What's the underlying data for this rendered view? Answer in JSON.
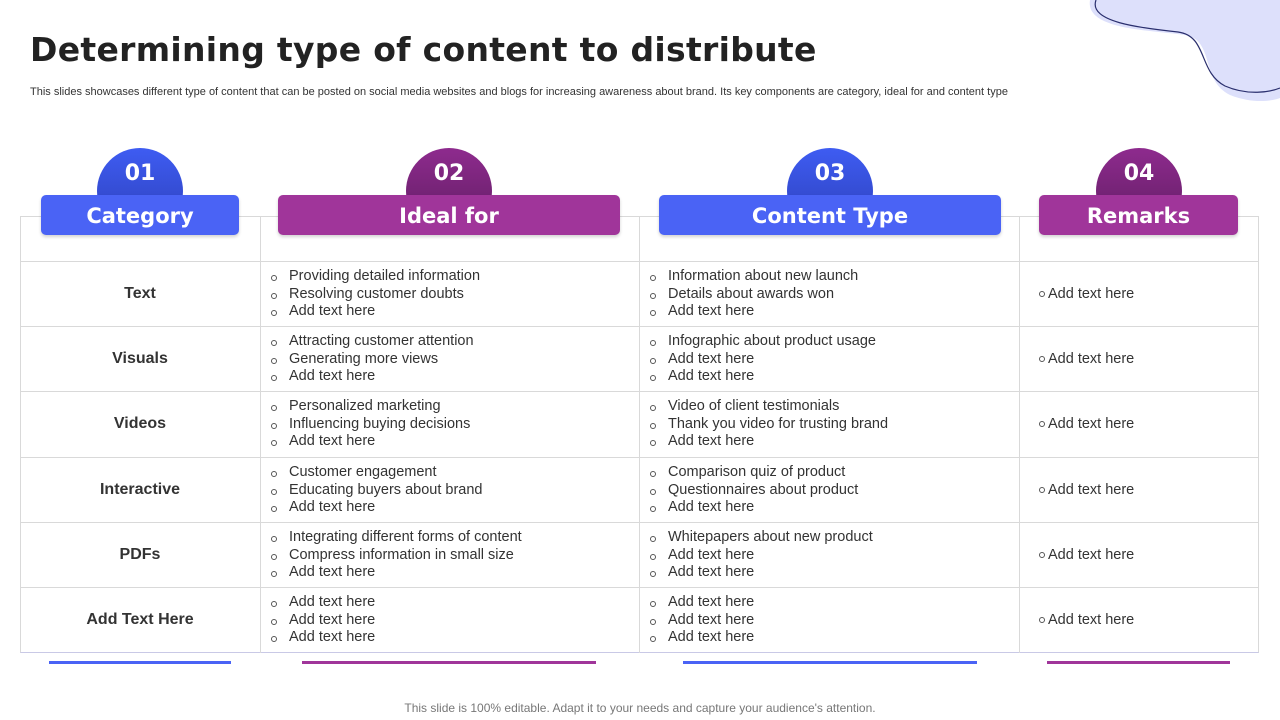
{
  "title": "Determining type of content to distribute",
  "subtitle": "This slides showcases different type of content that can be posted on social media websites and blogs for increasing awareness about brand. Its key components are category, ideal for and content type",
  "colors": {
    "blue": "#4a63f5",
    "purple": "#a0359a",
    "blob": "#dde0fb"
  },
  "headers": [
    {
      "num": "01",
      "label": "Category"
    },
    {
      "num": "02",
      "label": "Ideal for"
    },
    {
      "num": "03",
      "label": "Content Type"
    },
    {
      "num": "04",
      "label": "Remarks"
    }
  ],
  "rows": [
    {
      "category": "Text",
      "ideal_for": [
        "Providing detailed information",
        "Resolving customer doubts",
        "Add text here"
      ],
      "content_type": [
        "Information about new launch",
        "Details about awards won",
        "Add text here"
      ],
      "remark": "Add text here"
    },
    {
      "category": "Visuals",
      "ideal_for": [
        "Attracting customer attention",
        "Generating more views",
        "Add text here"
      ],
      "content_type": [
        "Infographic about product usage",
        "Add text here",
        "Add text here"
      ],
      "remark": "Add text here"
    },
    {
      "category": "Videos",
      "ideal_for": [
        "Personalized marketing",
        "Influencing buying decisions",
        "Add text here"
      ],
      "content_type": [
        "Video of client testimonials",
        "Thank you video for trusting brand",
        "Add text here"
      ],
      "remark": "Add text here"
    },
    {
      "category": "Interactive",
      "ideal_for": [
        "Customer engagement",
        "Educating buyers about brand",
        "Add text here"
      ],
      "content_type": [
        "Comparison quiz of product",
        "Questionnaires about product",
        "Add text here"
      ],
      "remark": "Add text here"
    },
    {
      "category": "PDFs",
      "ideal_for": [
        "Integrating different forms of content",
        "Compress information in small size",
        "Add text here"
      ],
      "content_type": [
        "Whitepapers about new product",
        "Add text here",
        "Add text here"
      ],
      "remark": "Add text here"
    },
    {
      "category": "Add Text Here",
      "ideal_for": [
        "Add text here",
        "Add text here",
        "Add text here"
      ],
      "content_type": [
        "Add text here",
        "Add text here",
        "Add text here"
      ],
      "remark": "Add text here"
    }
  ],
  "footer": "This slide is 100% editable. Adapt it to your needs and capture your audience's attention."
}
